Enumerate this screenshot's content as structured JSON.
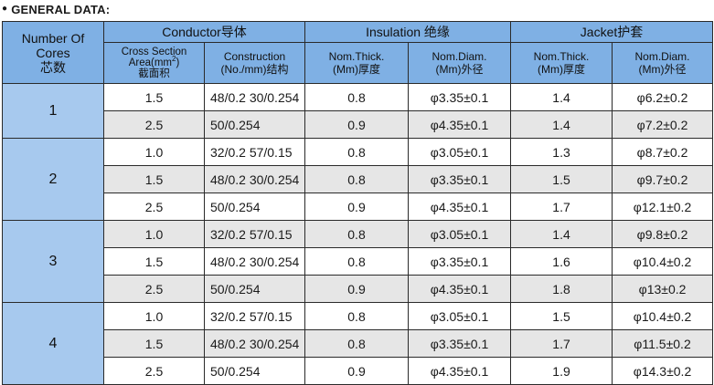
{
  "header": {
    "title": "GENERAL DATA:"
  },
  "table": {
    "group_headers": {
      "cores": [
        "Number Of",
        "Cores",
        "芯数"
      ],
      "conductor": "Conductor导体",
      "insulation": "Insulation 绝缘",
      "jacket": "Jacket护套"
    },
    "sub_headers": {
      "cross_section": [
        "Cross Section",
        "Area(mm",
        "2",
        ")",
        "截面积"
      ],
      "construction": [
        "Construction",
        "(No./mm)结构"
      ],
      "ins_thick": [
        "Nom.Thick.",
        "(Mm)厚度"
      ],
      "ins_diam": [
        "Nom.Diam.",
        "(Mm)外径"
      ],
      "jac_thick": [
        "Nom.Thick.",
        "(Mm)厚度"
      ],
      "jac_diam": [
        "Nom.Diam.",
        "(Mm)外径"
      ]
    },
    "groups": [
      {
        "cores": "1",
        "rows": [
          [
            "1.5",
            "48/0.2 30/0.254",
            "0.8",
            "φ3.35±0.1",
            "1.4",
            "φ6.2±0.2"
          ],
          [
            "2.5",
            "50/0.254",
            "0.9",
            "φ4.35±0.1",
            "1.4",
            "φ7.2±0.2"
          ]
        ]
      },
      {
        "cores": "2",
        "rows": [
          [
            "1.0",
            "32/0.2  57/0.15",
            "0.8",
            "φ3.05±0.1",
            "1.3",
            "φ8.7±0.2"
          ],
          [
            "1.5",
            "48/0.2 30/0.254",
            "0.8",
            "φ3.35±0.1",
            "1.5",
            "φ9.7±0.2"
          ],
          [
            "2.5",
            "50/0.254",
            "0.9",
            "φ4.35±0.1",
            "1.7",
            "φ12.1±0.2"
          ]
        ]
      },
      {
        "cores": "3",
        "rows": [
          [
            "1.0",
            "32/0.2  57/0.15",
            "0.8",
            "φ3.05±0.1",
            "1.4",
            "φ9.8±0.2"
          ],
          [
            "1.5",
            "48/0.2 30/0.254",
            "0.8",
            "φ3.35±0.1",
            "1.6",
            "φ10.4±0.2"
          ],
          [
            "2.5",
            "50/0.254",
            "0.9",
            "φ4.35±0.1",
            "1.8",
            "φ13±0.2"
          ]
        ]
      },
      {
        "cores": "4",
        "rows": [
          [
            "1.0",
            "32/0.2  57/0.15",
            "0.8",
            "φ3.05±0.1",
            "1.5",
            "φ10.4±0.2"
          ],
          [
            "1.5",
            "48/0.2 30/0.254",
            "0.8",
            "φ3.35±0.1",
            "1.7",
            "φ11.5±0.2"
          ],
          [
            "2.5",
            "50/0.254",
            "0.9",
            "φ4.35±0.1",
            "1.9",
            "φ14.3±0.2"
          ]
        ]
      }
    ]
  }
}
